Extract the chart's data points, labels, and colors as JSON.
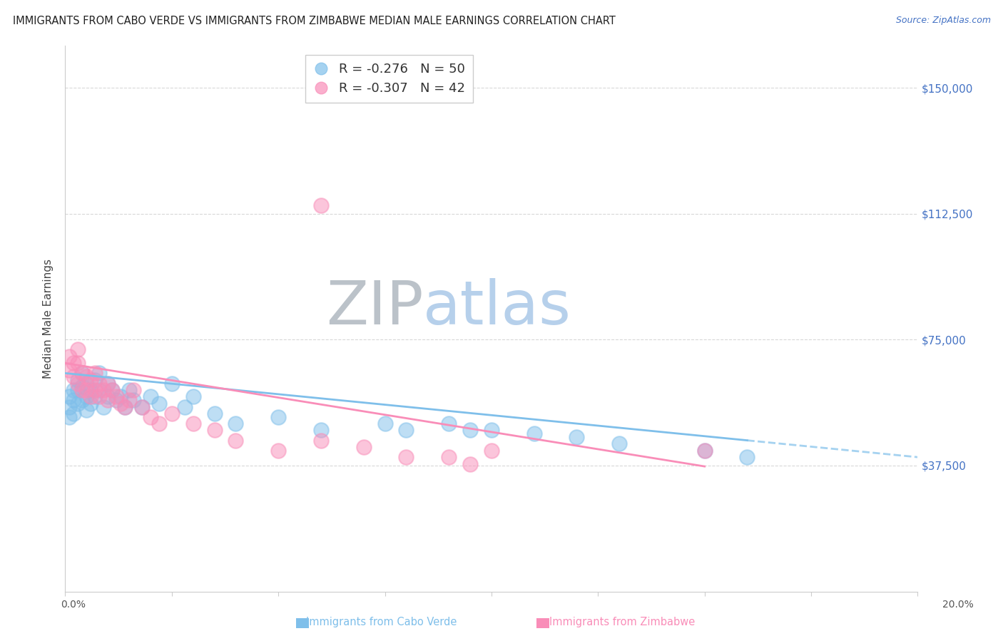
{
  "title": "IMMIGRANTS FROM CABO VERDE VS IMMIGRANTS FROM ZIMBABWE MEDIAN MALE EARNINGS CORRELATION CHART",
  "source": "Source: ZipAtlas.com",
  "ylabel": "Median Male Earnings",
  "yticks": [
    0,
    37500,
    75000,
    112500,
    150000
  ],
  "ytick_labels": [
    "",
    "$37,500",
    "$75,000",
    "$112,500",
    "$150,000"
  ],
  "xmin": 0.0,
  "xmax": 0.2,
  "ymin": 0,
  "ymax": 162500,
  "cabo_verde_color": "#7fbfea",
  "zimbabwe_color": "#f98db8",
  "cabo_verde_label": "Immigrants from Cabo Verde",
  "zimbabwe_label": "Immigrants from Zimbabwe",
  "legend_r_cabo": "R = -0.276",
  "legend_n_cabo": "N = 50",
  "legend_r_zim": "R = -0.307",
  "legend_n_zim": "N = 42",
  "cabo_verde_x": [
    0.001,
    0.001,
    0.001,
    0.002,
    0.002,
    0.002,
    0.003,
    0.003,
    0.003,
    0.004,
    0.004,
    0.004,
    0.005,
    0.005,
    0.005,
    0.006,
    0.006,
    0.007,
    0.007,
    0.008,
    0.008,
    0.009,
    0.01,
    0.01,
    0.011,
    0.012,
    0.013,
    0.014,
    0.015,
    0.016,
    0.018,
    0.02,
    0.022,
    0.025,
    0.028,
    0.03,
    0.035,
    0.04,
    0.05,
    0.06,
    0.075,
    0.08,
    0.09,
    0.095,
    0.1,
    0.11,
    0.12,
    0.13,
    0.15,
    0.16
  ],
  "cabo_verde_y": [
    58000,
    55000,
    52000,
    60000,
    57000,
    53000,
    63000,
    60000,
    56000,
    65000,
    61000,
    57000,
    62000,
    58000,
    54000,
    60000,
    56000,
    63000,
    58000,
    65000,
    60000,
    55000,
    62000,
    58000,
    60000,
    57000,
    58000,
    55000,
    60000,
    57000,
    55000,
    58000,
    56000,
    62000,
    55000,
    58000,
    53000,
    50000,
    52000,
    48000,
    50000,
    48000,
    50000,
    48000,
    48000,
    47000,
    46000,
    44000,
    42000,
    40000
  ],
  "zimbabwe_x": [
    0.001,
    0.001,
    0.002,
    0.002,
    0.003,
    0.003,
    0.003,
    0.004,
    0.004,
    0.005,
    0.005,
    0.006,
    0.006,
    0.007,
    0.007,
    0.008,
    0.008,
    0.009,
    0.01,
    0.01,
    0.011,
    0.012,
    0.013,
    0.014,
    0.015,
    0.016,
    0.018,
    0.02,
    0.022,
    0.025,
    0.03,
    0.035,
    0.04,
    0.05,
    0.06,
    0.07,
    0.08,
    0.09,
    0.095,
    0.1,
    0.15,
    0.06
  ],
  "zimbabwe_y": [
    70000,
    66000,
    68000,
    64000,
    72000,
    68000,
    62000,
    65000,
    60000,
    64000,
    60000,
    63000,
    58000,
    65000,
    60000,
    62000,
    58000,
    60000,
    62000,
    57000,
    60000,
    58000,
    56000,
    55000,
    57000,
    60000,
    55000,
    52000,
    50000,
    53000,
    50000,
    48000,
    45000,
    42000,
    45000,
    43000,
    40000,
    40000,
    38000,
    42000,
    42000,
    115000
  ],
  "grid_color": "#d8d8d8",
  "background_color": "#ffffff",
  "title_fontsize": 10.5,
  "source_fontsize": 9,
  "tick_label_fontsize": 11,
  "axis_label_fontsize": 11
}
